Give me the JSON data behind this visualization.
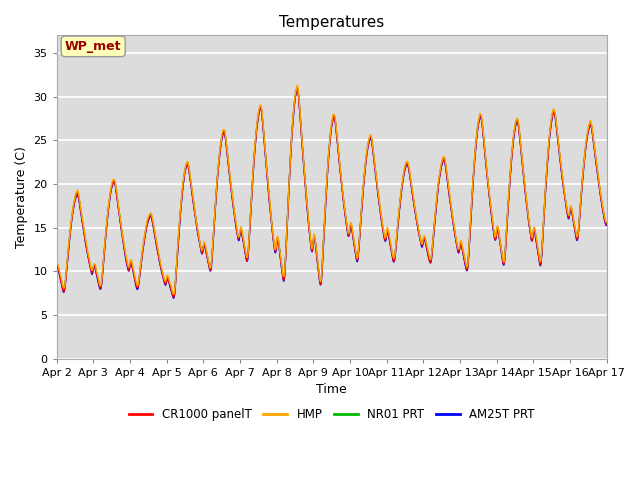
{
  "title": "Temperatures",
  "xlabel": "Time",
  "ylabel": "Temperature (C)",
  "annotation": "WP_met",
  "ylim": [
    0,
    37
  ],
  "yticks": [
    0,
    5,
    10,
    15,
    20,
    25,
    30,
    35
  ],
  "xtick_labels": [
    "Apr 2",
    "Apr 3",
    "Apr 4",
    "Apr 5",
    "Apr 6",
    "Apr 7",
    "Apr 8",
    "Apr 9",
    "Apr 10",
    "Apr 11",
    "Apr 12",
    "Apr 13",
    "Apr 14",
    "Apr 15",
    "Apr 16",
    "Apr 17"
  ],
  "series_colors": {
    "CR1000 panelT": "#FF0000",
    "HMP": "#FFA500",
    "NR01 PRT": "#00BB00",
    "AM25T PRT": "#0000FF"
  },
  "bg_color": "#DCDCDC",
  "grid_color": "#FFFFFF",
  "annotation_bg": "#FFFFBB",
  "annotation_text_color": "#990000",
  "annotation_border_color": "#999999",
  "peaks": [
    19.0,
    20.5,
    16.5,
    22.5,
    26.2,
    29.0,
    31.2,
    28.0,
    25.5,
    22.5,
    23.0,
    28.0,
    27.5,
    28.5,
    27.0
  ],
  "troughs": [
    7.2,
    7.5,
    7.5,
    6.5,
    9.5,
    10.5,
    8.0,
    7.5,
    10.5,
    10.5,
    10.5,
    9.5,
    10.0,
    10.0,
    13.0
  ]
}
